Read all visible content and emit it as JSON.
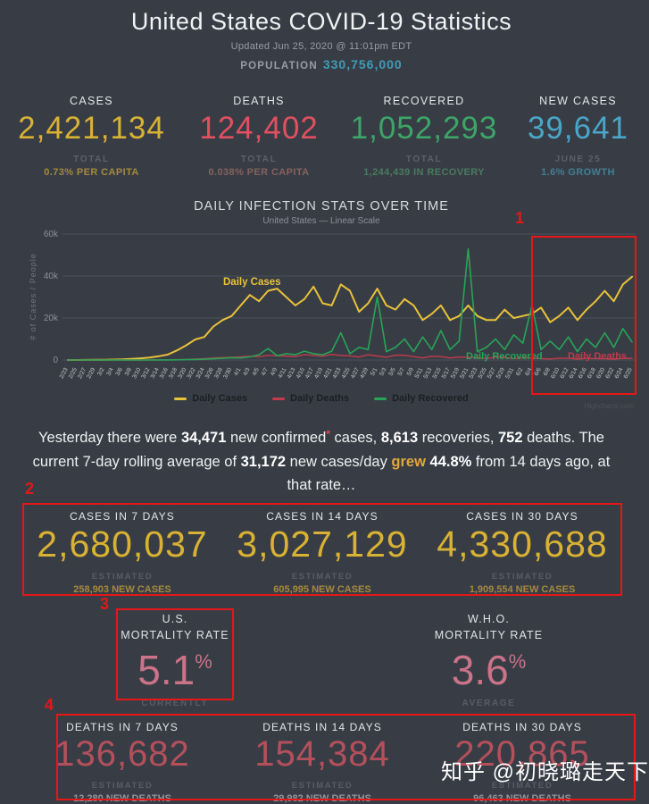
{
  "header": {
    "title": "United States COVID-19 Statistics",
    "updated": "Updated Jun 25, 2020 @ 11:01pm EDT",
    "population_label": "POPULATION",
    "population_value": "330,756,000"
  },
  "stats": {
    "columns": [
      {
        "label": "CASES",
        "value": "2,421,134",
        "total": "TOTAL",
        "sub": "0.73% PER CAPITA",
        "color": "#d9b233",
        "sub_color": "#a5893d"
      },
      {
        "label": "DEATHS",
        "value": "124,402",
        "total": "TOTAL",
        "sub": "0.038% PER CAPITA",
        "color": "#e25060",
        "sub_color": "#85615f"
      },
      {
        "label": "RECOVERED",
        "value": "1,052,293",
        "total": "TOTAL",
        "sub": "1,244,439 IN RECOVERY",
        "color": "#3da568",
        "sub_color": "#4a7a5e"
      },
      {
        "label": "NEW CASES",
        "value": "39,641",
        "total": "JUNE 25",
        "sub": "1.6% GROWTH",
        "color": "#4aa6c9",
        "sub_color": "#437e92"
      }
    ]
  },
  "chart_data": {
    "type": "line",
    "title": "DAILY INFECTION STATS OVER TIME",
    "subtitle": "United States — Linear Scale",
    "ylabel": "# of Cases / People",
    "ylim": [
      0,
      60000
    ],
    "grid": true,
    "legend_position": "bottom",
    "watermark": "Highcharts.com",
    "yticks": [
      {
        "value": 0,
        "label": "0"
      },
      {
        "value": 20000,
        "label": "20k"
      },
      {
        "value": 40000,
        "label": "40k"
      },
      {
        "value": 60000,
        "label": "60k"
      }
    ],
    "x": [
      "2/23",
      "2/25",
      "2/27",
      "2/29",
      "3/2",
      "3/4",
      "3/6",
      "3/8",
      "3/10",
      "3/12",
      "3/14",
      "3/16",
      "3/18",
      "3/20",
      "3/22",
      "3/24",
      "3/26",
      "3/28",
      "3/30",
      "4/1",
      "4/3",
      "4/5",
      "4/7",
      "4/9",
      "4/11",
      "4/13",
      "4/15",
      "4/17",
      "4/19",
      "4/21",
      "4/23",
      "4/25",
      "4/27",
      "4/29",
      "5/1",
      "5/3",
      "5/5",
      "5/7",
      "5/9",
      "5/11",
      "5/13",
      "5/15",
      "5/17",
      "5/19",
      "5/21",
      "5/23",
      "5/25",
      "5/27",
      "5/29",
      "5/31",
      "6/2",
      "6/4",
      "6/6",
      "6/8",
      "6/10",
      "6/12",
      "6/14",
      "6/16",
      "6/18",
      "6/20",
      "6/22",
      "6/24",
      "6/25"
    ],
    "series": [
      {
        "name": "Daily Cases",
        "color": "#e8c23a",
        "width": 2,
        "values": [
          0,
          0,
          50,
          80,
          100,
          200,
          300,
          500,
          800,
          1200,
          1800,
          2600,
          4600,
          7000,
          9800,
          11000,
          16000,
          19000,
          21000,
          26000,
          31000,
          28000,
          33000,
          34000,
          30000,
          26000,
          29000,
          35000,
          27000,
          26000,
          36000,
          33000,
          23000,
          27000,
          34000,
          26000,
          24000,
          29000,
          26000,
          19000,
          22000,
          26000,
          19000,
          21000,
          26000,
          21000,
          19000,
          19000,
          24000,
          20000,
          21000,
          22000,
          25000,
          18000,
          21000,
          25000,
          19000,
          24000,
          28000,
          33000,
          28000,
          36000,
          39641
        ]
      },
      {
        "name": "Daily Deaths",
        "color": "#c23a4c",
        "width": 1.4,
        "values": [
          0,
          0,
          0,
          0,
          0,
          0,
          0,
          10,
          20,
          30,
          50,
          80,
          150,
          250,
          450,
          700,
          1000,
          1200,
          1300,
          1500,
          1800,
          1600,
          2200,
          2000,
          1900,
          1600,
          2500,
          2200,
          1800,
          2700,
          2200,
          2000,
          1400,
          2500,
          1900,
          1300,
          2300,
          2200,
          1600,
          1000,
          1800,
          1600,
          1000,
          1400,
          1300,
          1100,
          600,
          1500,
          1200,
          700,
          1100,
          1000,
          700,
          500,
          900,
          800,
          400,
          800,
          700,
          600,
          400,
          800,
          752
        ]
      },
      {
        "name": "Daily Recovered",
        "color": "#27a457",
        "width": 1.6,
        "values": [
          0,
          0,
          0,
          0,
          0,
          0,
          0,
          0,
          0,
          10,
          30,
          60,
          100,
          150,
          250,
          400,
          600,
          800,
          1100,
          1000,
          1500,
          2500,
          5500,
          2000,
          3000,
          2500,
          4200,
          3000,
          2500,
          4200,
          13000,
          3000,
          6000,
          5000,
          30000,
          4000,
          6000,
          10000,
          4000,
          11000,
          5000,
          14000,
          5000,
          9000,
          53000,
          4000,
          6000,
          10000,
          5000,
          12000,
          8000,
          26000,
          5000,
          9000,
          5000,
          11000,
          4000,
          10000,
          6000,
          13000,
          6000,
          15000,
          8613
        ]
      }
    ]
  },
  "summary": {
    "p1": "Yesterday there were ",
    "n1": "34,471",
    "p2": " new confirmed",
    "star": "*",
    "p3": " cases, ",
    "n2": "8,613",
    "p4": " recoveries, ",
    "n3": "752",
    "p5": " deaths. The current 7-day rolling average of ",
    "n4": "31,172",
    "p6": " new cases/day ",
    "grew": "grew",
    "p7": " ",
    "n5": "44.8%",
    "p8": " from 14 days ago, at that rate…"
  },
  "cases_section": {
    "columns": [
      {
        "label": "CASES IN 7 DAYS",
        "value": "2,680,037",
        "estimated": "ESTIMATED",
        "sub": "258,903 NEW CASES"
      },
      {
        "label": "CASES IN 14 DAYS",
        "value": "3,027,129",
        "estimated": "ESTIMATED",
        "sub": "605,995 NEW CASES"
      },
      {
        "label": "CASES IN 30 DAYS",
        "value": "4,330,688",
        "estimated": "ESTIMATED",
        "sub": "1,909,554 NEW CASES"
      }
    ]
  },
  "mortality": {
    "us": {
      "line1": "U.S.",
      "line2": "MORTALITY RATE",
      "value": "5.1",
      "unit": "%",
      "sub": "CURRENTLY"
    },
    "who": {
      "line1": "W.H.O.",
      "line2": "MORTALITY RATE",
      "value": "3.6",
      "unit": "%",
      "sub": "AVERAGE"
    }
  },
  "deaths_section": {
    "columns": [
      {
        "label": "DEATHS IN 7 DAYS",
        "value": "136,682",
        "estimated": "ESTIMATED",
        "sub": "12,280 NEW DEATHS"
      },
      {
        "label": "DEATHS IN 14 DAYS",
        "value": "154,384",
        "estimated": "ESTIMATED",
        "sub": "29,982 NEW DEATHS"
      },
      {
        "label": "DEATHS IN 30 DAYS",
        "value": "220,865",
        "estimated": "ESTIMATED",
        "sub": "96,463 NEW DEATHS"
      }
    ]
  },
  "annotations": {
    "n1": "1",
    "n2": "2",
    "n3": "3",
    "n4": "4"
  },
  "watermark": {
    "text": "知乎 @初晓璐走天下"
  }
}
